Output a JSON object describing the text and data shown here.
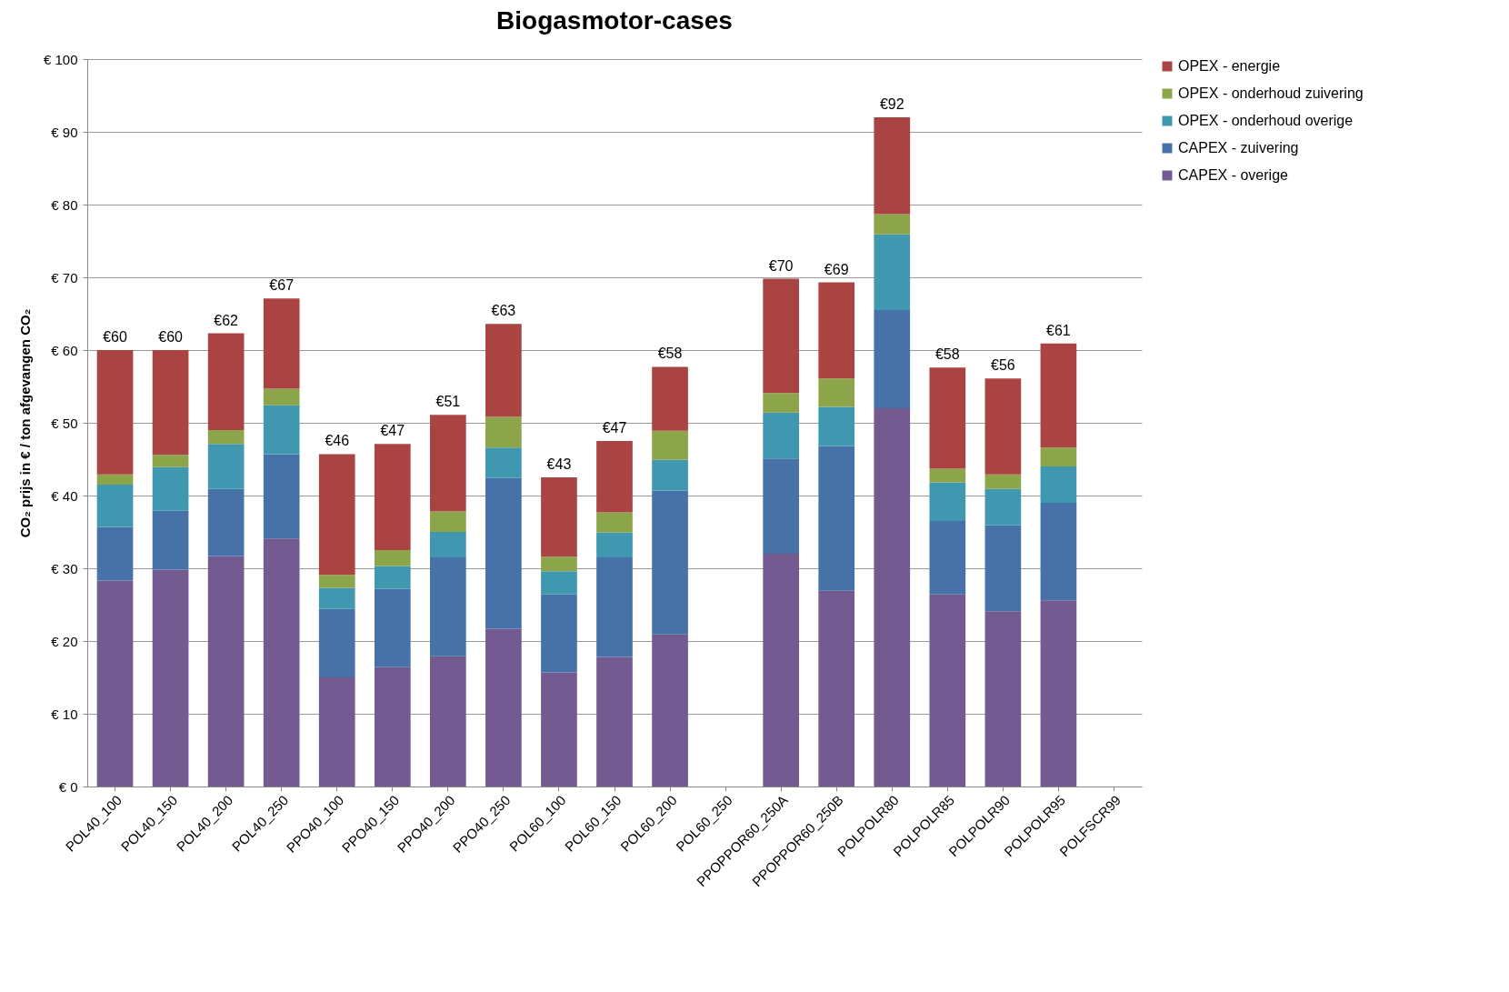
{
  "chart_data": {
    "type": "bar",
    "title": "Biogasmotor-cases",
    "ylabel": "CO₂ prijs  in € / ton afgevangen CO₂",
    "stacked": true,
    "grid": "y",
    "legend": "right",
    "categories": [
      "POL40_100",
      "POL40_150",
      "POL40_200",
      "POL40_250",
      "PPO40_100",
      "PPO40_150",
      "PPO40_200",
      "PPO40_250",
      "POL60_100",
      "POL60_150",
      "POL60_200",
      "POL60_250",
      "PPOPPOR60_250A",
      "PPOPPOR60_250B",
      "POLPOLR80",
      "POLPOLR85",
      "POLPOLR90",
      "POLPOLR95",
      "POLFSCR99"
    ],
    "ylim": [
      0,
      100
    ],
    "yticks": [
      {
        "value": 0,
        "label": "€ 0"
      },
      {
        "value": 10,
        "label": "€ 10"
      },
      {
        "value": 20,
        "label": "€ 20"
      },
      {
        "value": 30,
        "label": "€ 30"
      },
      {
        "value": 40,
        "label": "€ 40"
      },
      {
        "value": 50,
        "label": "€ 50"
      },
      {
        "value": 60,
        "label": "€ 60"
      },
      {
        "value": 70,
        "label": "€ 70"
      },
      {
        "value": 80,
        "label": "€ 80"
      },
      {
        "value": 90,
        "label": "€ 90"
      },
      {
        "value": 100,
        "label": "€ 100"
      }
    ],
    "series": [
      {
        "name": "CAPEX - overige",
        "color": "#735a90",
        "values": [
          28.3,
          29.8,
          31.7,
          34.1,
          15.0,
          16.4,
          17.9,
          21.7,
          15.7,
          17.8,
          20.9,
          null,
          32.0,
          26.9,
          52.0,
          26.4,
          24.1,
          25.6,
          null
        ]
      },
      {
        "name": "CAPEX - zuivering",
        "color": "#4672a8",
        "values": [
          7.4,
          8.1,
          9.2,
          11.6,
          9.4,
          10.8,
          13.6,
          20.7,
          10.7,
          13.7,
          19.8,
          null,
          13.1,
          19.9,
          13.5,
          10.1,
          11.8,
          13.4,
          null
        ]
      },
      {
        "name": "OPEX - onderhoud overige",
        "color": "#3f97b0",
        "values": [
          5.8,
          6.0,
          6.2,
          6.7,
          2.9,
          3.1,
          3.5,
          4.2,
          3.2,
          3.4,
          4.2,
          null,
          6.3,
          5.4,
          10.4,
          5.3,
          5.0,
          5.0,
          null
        ]
      },
      {
        "name": "OPEX - onderhoud zuivering",
        "color": "#8ca54b",
        "values": [
          1.4,
          1.7,
          1.9,
          2.3,
          1.8,
          2.2,
          2.8,
          4.2,
          2.0,
          2.8,
          4.0,
          null,
          2.7,
          3.9,
          2.8,
          1.9,
          2.0,
          2.6,
          null
        ]
      },
      {
        "name": "OPEX - energie",
        "color": "#a94442",
        "values": [
          17.1,
          14.4,
          13.3,
          12.4,
          16.6,
          14.6,
          13.3,
          12.8,
          10.9,
          9.8,
          8.8,
          null,
          15.7,
          13.2,
          13.3,
          13.9,
          13.2,
          14.3,
          null
        ]
      }
    ],
    "totals": [
      "€60",
      "€60",
      "€62",
      "€67",
      "€46",
      "€47",
      "€51",
      "€63",
      "€43",
      "€47",
      "€58",
      null,
      "€70",
      "€69",
      "€92",
      "€58",
      "€56",
      "€61",
      null
    ]
  }
}
